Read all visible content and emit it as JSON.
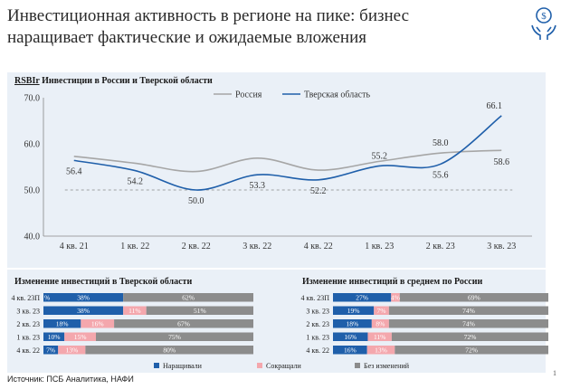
{
  "header": {
    "title_line1": "Инвестиционная активность в регионе на пике: бизнес",
    "title_line2": "наращивает фактические и ожидаемые вложения",
    "logo_icon": "hands-money-icon"
  },
  "page_number": "1",
  "source": "Источник: ПСБ Аналитика, НАФИ",
  "colors": {
    "russia": "#a6a6a6",
    "tver": "#1f5faa",
    "increase": "#1f5faa",
    "decrease": "#f4a7ad",
    "nochange": "#8c8c8c",
    "panel_bg": "#eaf0f7"
  },
  "chart_data": [
    {
      "type": "line",
      "title_brand": "RSBIr",
      "title": "Инвестиции в России и Тверской области",
      "categories": [
        "4 кв. 21",
        "1 кв. 22",
        "2 кв. 22",
        "3 кв. 22",
        "4 кв. 22",
        "1 кв. 23",
        "2 кв. 23",
        "3 кв. 23"
      ],
      "series": [
        {
          "name": "Россия",
          "values": [
            57.3,
            55.8,
            54.0,
            56.9,
            54.3,
            56.2,
            58.0,
            58.6
          ]
        },
        {
          "name": "Тверская область",
          "values": [
            56.4,
            54.2,
            50.0,
            53.3,
            52.2,
            55.2,
            55.6,
            66.1
          ]
        }
      ],
      "data_labels": [
        {
          "category": "4 кв. 21",
          "text": "56.4"
        },
        {
          "category": "1 кв. 22",
          "text": "54.2"
        },
        {
          "category": "2 кв. 22",
          "text": "50.0"
        },
        {
          "category": "3 кв. 22",
          "text": "53.3"
        },
        {
          "category": "4 кв. 22",
          "text": "52.2"
        },
        {
          "category": "1 кв. 23",
          "text": "55.2"
        },
        {
          "category": "2 кв. 23",
          "text": "58.0"
        },
        {
          "category": "2 кв. 23",
          "text": "55.6"
        },
        {
          "category": "3 кв. 23",
          "text": "66.1"
        },
        {
          "category": "3 кв. 23",
          "text": "58.6"
        }
      ],
      "y_ticks": [
        "70.0",
        "60.0",
        "50.0",
        "40.0"
      ],
      "ylim": [
        40,
        70
      ],
      "reference_line": 50,
      "legend": "top"
    },
    {
      "type": "bar",
      "stacked": true,
      "title": "Изменение инвестиций в Тверской области",
      "categories": [
        "4 кв. 23П",
        "3 кв. 23",
        "2 кв. 23",
        "1 кв. 23",
        "4 кв. 22"
      ],
      "series": [
        {
          "name": "Наращивали",
          "values": [
            38,
            38,
            18,
            10,
            7
          ]
        },
        {
          "name": "Сокращали",
          "values": [
            0,
            11,
            16,
            15,
            13
          ]
        },
        {
          "name": "Без изменений",
          "values": [
            62,
            51,
            67,
            75,
            80
          ]
        }
      ],
      "labels": [
        [
          "%",
          "38%",
          "",
          "62%"
        ],
        [
          "",
          "38%",
          "11%",
          "51%"
        ],
        [
          "",
          "18%",
          "16%",
          "67%"
        ],
        [
          "",
          "10%",
          "15%",
          "75%"
        ],
        [
          "",
          "7%",
          "13%",
          "80%"
        ]
      ]
    },
    {
      "type": "bar",
      "stacked": true,
      "title": "Изменение инвестиций в среднем по России",
      "categories": [
        "4 кв. 23П",
        "3 кв. 23",
        "2 кв. 23",
        "1 кв. 23",
        "4 кв. 22"
      ],
      "series": [
        {
          "name": "Наращивали",
          "values": [
            27,
            19,
            18,
            16,
            16
          ]
        },
        {
          "name": "Сокращали",
          "values": [
            4,
            7,
            8,
            11,
            13
          ]
        },
        {
          "name": "Без изменений",
          "values": [
            69,
            74,
            74,
            72,
            72
          ]
        }
      ],
      "labels": [
        [
          "27%",
          "4%",
          "69%"
        ],
        [
          "19%",
          "7%",
          "74%"
        ],
        [
          "18%",
          "8%",
          "74%"
        ],
        [
          "16%",
          "11%",
          "72%"
        ],
        [
          "16%",
          "13%",
          "72%"
        ]
      ]
    }
  ],
  "bottom_legend": [
    "Наращивали",
    "Сокращали",
    "Без изменений"
  ]
}
